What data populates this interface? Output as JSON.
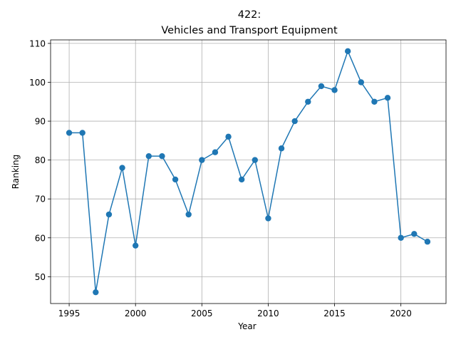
{
  "chart_data": {
    "type": "line",
    "title_line1": "422:",
    "title_line2": "Vehicles and Transport Equipment",
    "xlabel": "Year",
    "ylabel": "Ranking",
    "xlim": [
      1993.6,
      2023.4
    ],
    "ylim": [
      43.1,
      110.9
    ],
    "xticks": [
      1995,
      2000,
      2005,
      2010,
      2015,
      2020
    ],
    "yticks": [
      50,
      60,
      70,
      80,
      90,
      100,
      110
    ],
    "grid": true,
    "marker": "circle",
    "color": "#1f77b4",
    "x": [
      1995,
      1996,
      1997,
      1998,
      1999,
      2000,
      2001,
      2002,
      2003,
      2004,
      2005,
      2006,
      2007,
      2008,
      2009,
      2010,
      2011,
      2012,
      2013,
      2014,
      2015,
      2016,
      2017,
      2018,
      2019,
      2020,
      2021,
      2022
    ],
    "values": [
      87,
      87,
      46,
      66,
      78,
      58,
      81,
      81,
      75,
      66,
      80,
      82,
      86,
      75,
      80,
      65,
      83,
      90,
      95,
      99,
      98,
      108,
      100,
      95,
      96,
      60,
      61,
      59
    ]
  }
}
